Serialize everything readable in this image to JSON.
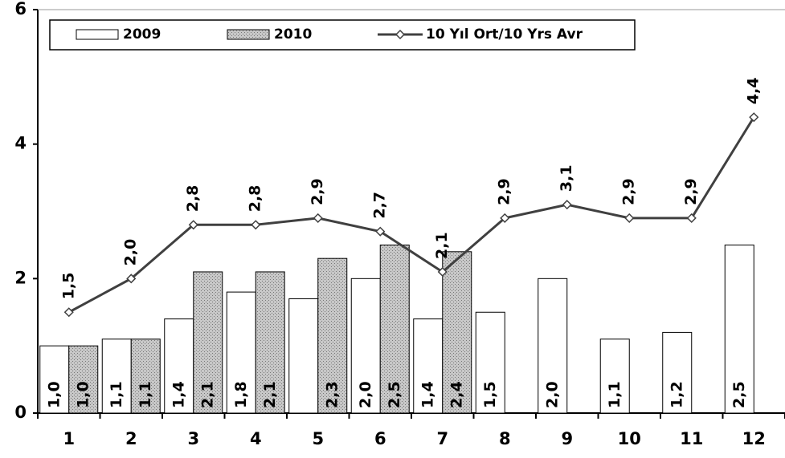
{
  "chart_data": {
    "type": "bar",
    "categories": [
      "1",
      "2",
      "3",
      "4",
      "5",
      "6",
      "7",
      "8",
      "9",
      "10",
      "11",
      "12"
    ],
    "series": [
      {
        "name": "2009",
        "type": "bar",
        "color": "#ffffff",
        "values": [
          1.0,
          1.1,
          1.4,
          1.8,
          1.7,
          2.0,
          1.4,
          1.5,
          2.0,
          1.1,
          1.2,
          2.5
        ],
        "value_labels": [
          "1,0",
          "1,1",
          "1,4",
          "1,8",
          null,
          "2,0",
          "1,4",
          "1,5",
          "2,0",
          "1,1",
          "1,2",
          "2,5"
        ]
      },
      {
        "name": "2010",
        "type": "bar",
        "color": "#c8c8c8",
        "values": [
          1.0,
          1.1,
          2.1,
          2.1,
          2.3,
          2.5,
          2.4,
          null,
          null,
          null,
          null,
          null
        ],
        "value_labels": [
          "1,0",
          "1,1",
          "2,1",
          "2,1",
          "2,3",
          "2,5",
          "2,4",
          null,
          null,
          null,
          null,
          null
        ]
      },
      {
        "name": "10 Yıl Ort/10 Yrs Avr",
        "type": "line",
        "color": "#404040",
        "values": [
          1.5,
          2.0,
          2.8,
          2.8,
          2.9,
          2.7,
          2.1,
          2.9,
          3.1,
          2.9,
          2.9,
          4.4
        ],
        "value_labels": [
          "1,5",
          "2,0",
          "2,8",
          "2,8",
          "2,9",
          "2,7",
          "2,1",
          "2,9",
          "3,1",
          "2,9",
          "2,9",
          "4,4"
        ]
      }
    ],
    "ylim": [
      0,
      6
    ],
    "yticks": [
      0,
      2,
      4,
      6
    ],
    "legend": "top"
  }
}
